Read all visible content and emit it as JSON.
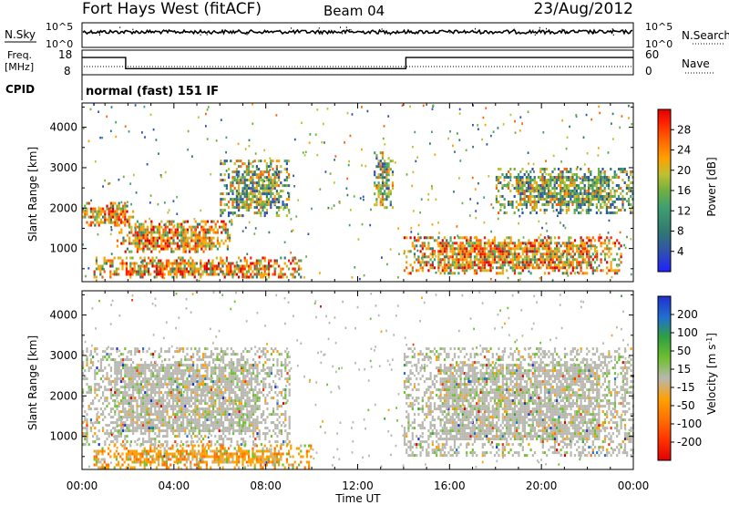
{
  "header": {
    "title": "Fort Hays West (fitACF)",
    "beam": "Beam 04",
    "date": "23/Aug/2012"
  },
  "top_panels": {
    "nsky_label": "N.Sky",
    "nsky_ticks": [
      "10^5",
      "10^0"
    ],
    "nsearch_label": "N.Search",
    "nsearch_ticks": [
      "10^5",
      "10^0"
    ],
    "freq_label_1": "Freq.",
    "freq_label_2": "[MHz]",
    "freq_ticks": [
      "18",
      "8"
    ],
    "nave_label": "Nave",
    "nave_ticks": [
      "60",
      "0"
    ],
    "cpid_label": "CPID",
    "cpid_text": "normal (fast) 151 IF",
    "freq_series": {
      "x_hours": [
        0,
        1.9,
        1.9,
        14.1,
        14.1,
        24
      ],
      "mhz": [
        15,
        15,
        10.5,
        10.5,
        15,
        15
      ]
    }
  },
  "chart_data": [
    {
      "type": "heatmap",
      "title": "",
      "xlabel": "",
      "ylabel": "Slant Range [km]",
      "xlim_hours": [
        0,
        24
      ],
      "ylim_km": [
        180,
        4600
      ],
      "yticks": [
        "1000",
        "2000",
        "3000",
        "4000"
      ],
      "colorbar": {
        "label": "Power [dB]",
        "ticks": [
          "28",
          "24",
          "20",
          "16",
          "12",
          "8",
          "4"
        ],
        "colors": [
          "#2020ff",
          "#3050b0",
          "#307a70",
          "#40a070",
          "#70b040",
          "#c0c030",
          "#ffa000",
          "#ff6000",
          "#ff2000",
          "#e00000"
        ]
      },
      "echo_regions": [
        {
          "t0": 0.0,
          "t1": 2.2,
          "r_low": 1550,
          "r_high": 2150,
          "level": "high"
        },
        {
          "t0": 1.5,
          "t1": 6.5,
          "r_low": 900,
          "r_high": 1700,
          "level": "high"
        },
        {
          "t0": 6.0,
          "t1": 9.0,
          "r_low": 1800,
          "r_high": 3200,
          "level": "medium"
        },
        {
          "t0": 0.5,
          "t1": 9.5,
          "r_low": 300,
          "r_high": 800,
          "level": "high"
        },
        {
          "t0": 12.7,
          "t1": 13.5,
          "r_low": 2000,
          "r_high": 3400,
          "level": "medium"
        },
        {
          "t0": 14.0,
          "t1": 23.5,
          "r_low": 400,
          "r_high": 1300,
          "level": "high"
        },
        {
          "t0": 18.0,
          "t1": 24.0,
          "r_low": 1900,
          "r_high": 3000,
          "level": "medium"
        }
      ]
    },
    {
      "type": "heatmap",
      "title": "",
      "xlabel": "Time UT",
      "ylabel": "Slant Range [km]",
      "xlim_hours": [
        0,
        24
      ],
      "ylim_km": [
        180,
        4600
      ],
      "xticks": [
        "00:00",
        "04:00",
        "08:00",
        "12:00",
        "16:00",
        "20:00",
        "00:00"
      ],
      "yticks": [
        "1000",
        "2000",
        "3000",
        "4000"
      ],
      "colorbar": {
        "label": "Velocity [m s^-1]",
        "ticks": [
          "200",
          "100",
          "50",
          "15",
          "-15",
          "-50",
          "-100",
          "-200"
        ],
        "colors": [
          "#2030d0",
          "#2070d0",
          "#30a040",
          "#70c030",
          "#b8b8b0",
          "#ffa000",
          "#ff7000",
          "#ff3000",
          "#e00000"
        ]
      },
      "echo_regions": [
        {
          "t0": 0.0,
          "t1": 9.0,
          "r_low": 800,
          "r_high": 3200,
          "velocity": "near zero (ground scatter)"
        },
        {
          "t0": 0.5,
          "t1": 10.0,
          "r_low": 250,
          "r_high": 800,
          "velocity": "-15 to -100"
        },
        {
          "t0": 14.0,
          "t1": 24.0,
          "r_low": 500,
          "r_high": 3200,
          "velocity": "near zero (ground scatter)"
        }
      ]
    }
  ]
}
